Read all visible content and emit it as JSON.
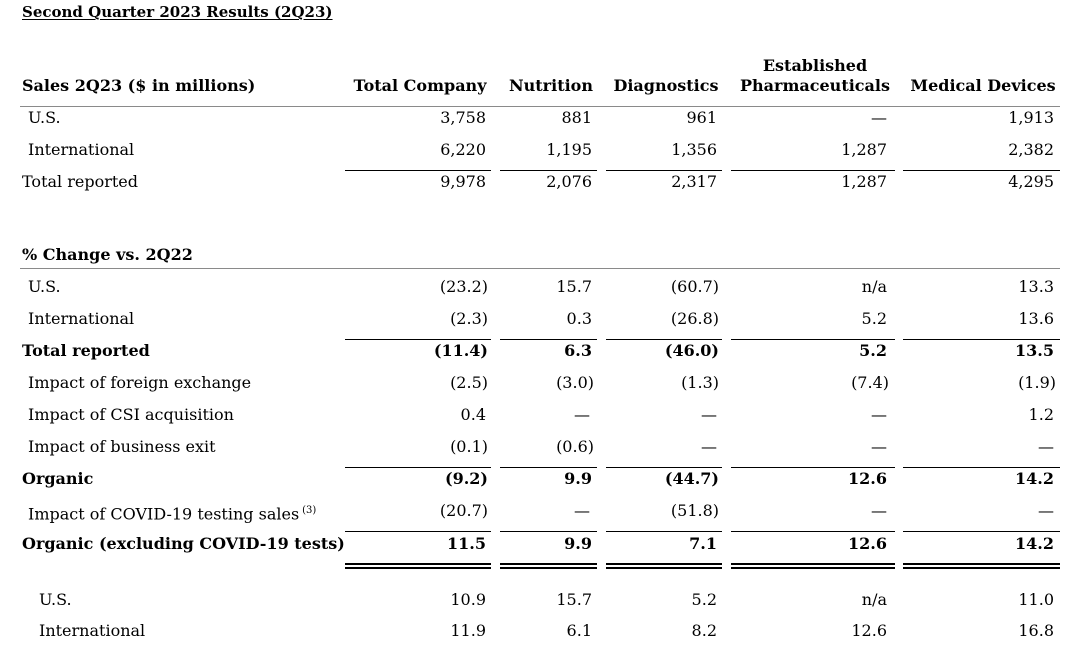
{
  "title": "Second Quarter 2023 Results (2Q23)",
  "sales": {
    "header_label": "Sales 2Q23 ($ in millions)",
    "columns": [
      "Total Company",
      "Nutrition",
      "Diagnostics",
      "Established Pharmaceuticals",
      "Medical Devices"
    ],
    "columns_line1": [
      "",
      "",
      "",
      "Established",
      ""
    ],
    "columns_line2": [
      "Total Company",
      "Nutrition",
      "Diagnostics",
      "Pharmaceuticals",
      "Medical Devices"
    ],
    "rows": [
      {
        "label": "U.S.",
        "values": [
          "3,758",
          "881",
          "961",
          "—",
          "1,913"
        ]
      },
      {
        "label": "International",
        "values": [
          "6,220",
          "1,195",
          "1,356",
          "1,287",
          "2,382"
        ]
      },
      {
        "label": "Total reported",
        "values": [
          "9,978",
          "2,076",
          "2,317",
          "1,287",
          "4,295"
        ]
      }
    ]
  },
  "pct_change": {
    "title": "% Change vs. 2Q22",
    "rows": [
      {
        "label": "U.S.",
        "values": [
          "(23.2)",
          "15.7",
          "(60.7)",
          "n/a",
          "13.3"
        ]
      },
      {
        "label": "International",
        "values": [
          "(2.3)",
          "0.3",
          "(26.8)",
          "5.2",
          "13.6"
        ]
      },
      {
        "label": "Total reported",
        "values": [
          "(11.4)",
          "6.3",
          "(46.0)",
          "5.2",
          "13.5"
        ]
      },
      {
        "label": "Impact of foreign exchange",
        "values": [
          "(2.5)",
          "(3.0)",
          "(1.3)",
          "(7.4)",
          "(1.9)"
        ]
      },
      {
        "label": "Impact of CSI acquisition",
        "values": [
          "0.4",
          "—",
          "—",
          "—",
          "1.2"
        ]
      },
      {
        "label": "Impact of business exit",
        "values": [
          "(0.1)",
          "(0.6)",
          "—",
          "—",
          "—"
        ]
      },
      {
        "label": "Organic",
        "values": [
          "(9.2)",
          "9.9",
          "(44.7)",
          "12.6",
          "14.2"
        ]
      },
      {
        "label": "Impact of COVID-19 testing sales",
        "note": "(3)",
        "values": [
          "(20.7)",
          "—",
          "(51.8)",
          "—",
          "—"
        ]
      },
      {
        "label": "Organic (excluding COVID-19 tests)",
        "values": [
          "11.5",
          "9.9",
          "7.1",
          "12.6",
          "14.2"
        ]
      },
      {
        "label": "U.S.",
        "values": [
          "10.9",
          "15.7",
          "5.2",
          "n/a",
          "11.0"
        ]
      },
      {
        "label": "International",
        "values": [
          "11.9",
          "6.1",
          "8.2",
          "12.6",
          "16.8"
        ]
      }
    ]
  }
}
